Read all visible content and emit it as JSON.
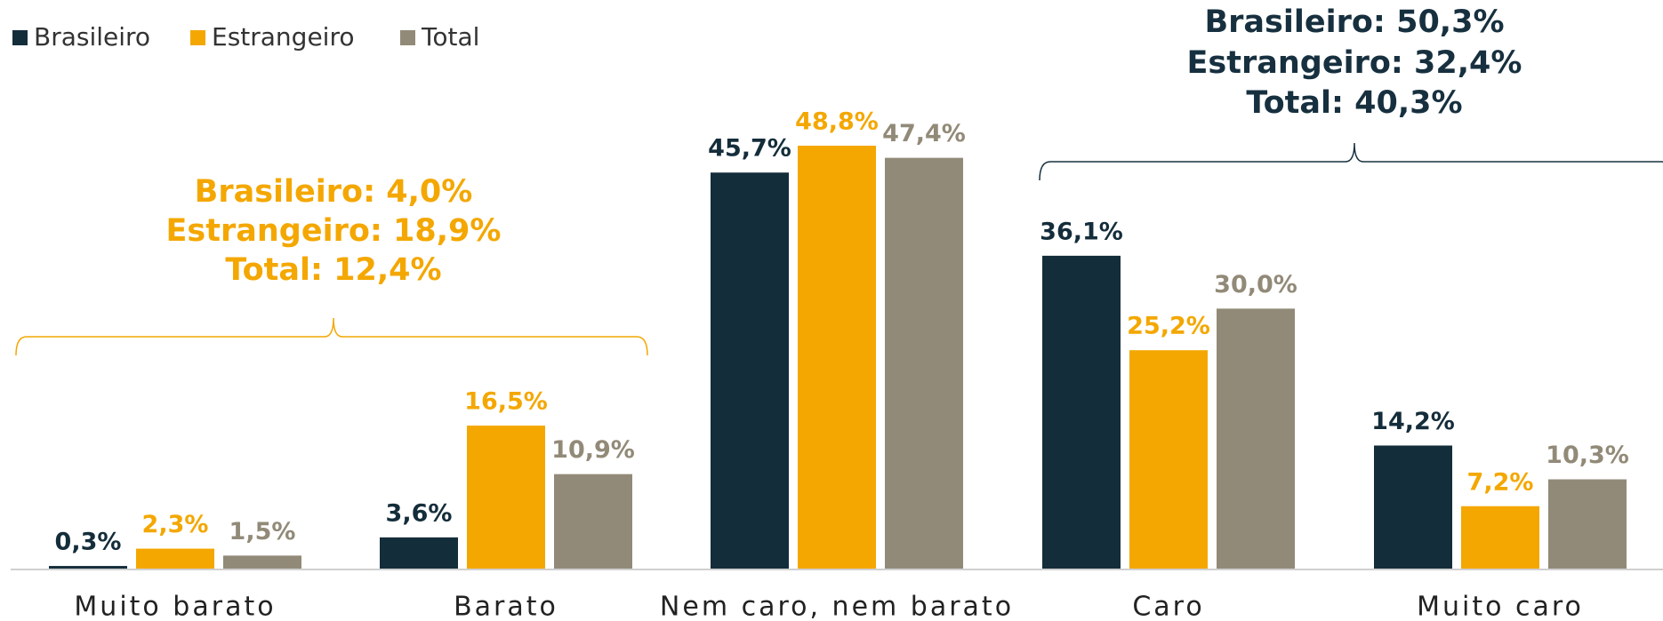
{
  "chart_data": {
    "type": "bar",
    "categories": [
      "Muito barato",
      "Barato",
      "Nem caro, nem barato",
      "Caro",
      "Muito caro"
    ],
    "series": [
      {
        "name": "Brasileiro",
        "color": "#142d3b",
        "values": [
          0.3,
          3.6,
          45.7,
          36.1,
          14.2
        ],
        "value_labels": [
          "0,3%",
          "3,6%",
          "45,7%",
          "36,1%",
          "14,2%"
        ]
      },
      {
        "name": "Estrangeiro",
        "color": "#f4a700",
        "values": [
          2.3,
          16.5,
          48.8,
          25.2,
          7.2
        ],
        "value_labels": [
          "2,3%",
          "16,5%",
          "48,8%",
          "25,2%",
          "7,2%"
        ]
      },
      {
        "name": "Total",
        "color": "#928a78",
        "values": [
          1.5,
          10.9,
          47.4,
          30.0,
          10.3
        ],
        "value_labels": [
          "1,5%",
          "10,9%",
          "47,4%",
          "30,0%",
          "10,3%"
        ]
      }
    ],
    "legend": "top-left",
    "annotations": [
      {
        "color": "#f4a700",
        "lines": [
          "Brasileiro: 4,0%",
          "Estrangeiro: 18,9%",
          "Total: 12,4%"
        ]
      },
      {
        "color": "#17303f",
        "lines": [
          "Brasileiro: 50,3%",
          "Estrangeiro: 32,4%",
          "Total: 40,3%"
        ]
      }
    ]
  }
}
